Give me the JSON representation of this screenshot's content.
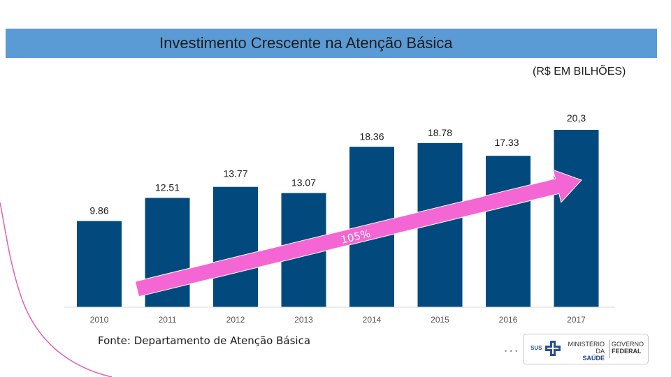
{
  "header": {
    "title": "Investimento Crescente na Atenção Básica",
    "unit": "(R$ EM BILHÕES)"
  },
  "chart_data": {
    "type": "bar",
    "title": "Investimento Crescente na Atenção Básica",
    "ylabel": "R$ em bilhões",
    "categories": [
      "2010",
      "2011",
      "2012",
      "2013",
      "2014",
      "2015",
      "2016",
      "2017"
    ],
    "values": [
      9.86,
      12.51,
      13.77,
      13.07,
      18.36,
      18.78,
      17.33,
      20.3
    ],
    "value_labels": [
      "9.86",
      "12.51",
      "13.77",
      "13.07",
      "18.36",
      "18.78",
      "17.33",
      "20,3"
    ],
    "ylim": [
      0,
      22
    ],
    "bar_color": "#024a7e",
    "annotation": {
      "text": "105%",
      "color": "#f466d4",
      "type": "trend-arrow"
    },
    "grid": false
  },
  "footer": {
    "source": "Fonte: Departamento de Atenção Básica",
    "logo": {
      "sus": "SUS",
      "ministry_line1": "MINISTÉRIO DA",
      "ministry_line2": "SAÚDE",
      "gov_line1": "GOVERNO",
      "gov_line2": "FEDERAL"
    }
  },
  "colors": {
    "title_bar": "#5b9bd5",
    "bars": "#024a7e",
    "arrow": "#f466d4",
    "decor_curve": "#e35fb3"
  }
}
